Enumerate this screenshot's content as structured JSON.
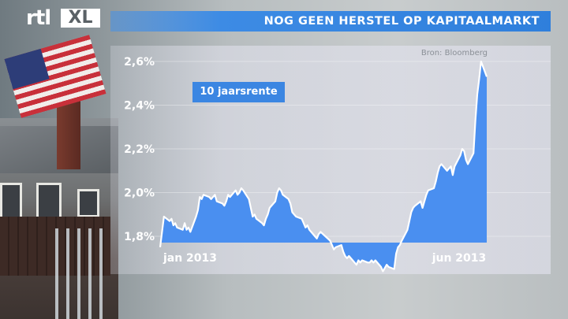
{
  "brand": {
    "logo_text": "rtl",
    "logo_suffix": "XL"
  },
  "header": {
    "title": "NOG GEEN HERSTEL OP KAPITAALMARKT"
  },
  "chart_data": {
    "type": "area",
    "title": "NOG GEEN HERSTEL OP KAPITAALMARKT",
    "source": "Bron: Bloomberg",
    "legend": "10 jaarsrente",
    "y_unit": "%",
    "ylim": [
      1.65,
      2.6
    ],
    "ytick_values": [
      1.8,
      2.0,
      2.2,
      2.4,
      2.6
    ],
    "yticks": [
      "1,8%",
      "2,0%",
      "2,2%",
      "2,4%",
      "2,6%"
    ],
    "xticks": [
      "jan 2013",
      "jun 2013"
    ],
    "x_range": [
      "2013-01-02",
      "2013-06-24"
    ],
    "grid": true,
    "fill_color": "#4a8ff0",
    "line_color": "#ffffff",
    "series": [
      {
        "x": [
          "2013-01-02",
          "2013-01-03",
          "2013-01-04",
          "2013-01-07",
          "2013-01-08",
          "2013-01-09",
          "2013-01-10",
          "2013-01-11",
          "2013-01-14",
          "2013-01-15",
          "2013-01-16",
          "2013-01-17",
          "2013-01-18",
          "2013-01-21",
          "2013-01-22",
          "2013-01-23",
          "2013-01-24",
          "2013-01-25",
          "2013-01-28",
          "2013-01-29",
          "2013-01-30",
          "2013-01-31",
          "2013-02-01",
          "2013-02-04",
          "2013-02-05",
          "2013-02-06",
          "2013-02-07",
          "2013-02-08",
          "2013-02-11",
          "2013-02-12",
          "2013-02-13",
          "2013-02-14",
          "2013-02-15",
          "2013-02-18",
          "2013-02-19",
          "2013-02-20",
          "2013-02-21",
          "2013-02-22",
          "2013-02-25",
          "2013-02-26",
          "2013-02-27",
          "2013-02-28",
          "2013-03-01",
          "2013-03-04",
          "2013-03-05",
          "2013-03-06",
          "2013-03-07",
          "2013-03-08",
          "2013-03-11",
          "2013-03-12",
          "2013-03-13",
          "2013-03-14",
          "2013-03-15",
          "2013-03-18",
          "2013-03-19",
          "2013-03-20",
          "2013-03-21",
          "2013-03-22",
          "2013-03-25",
          "2013-03-26",
          "2013-03-27",
          "2013-03-28",
          "2013-04-02",
          "2013-04-03",
          "2013-04-04",
          "2013-04-05",
          "2013-04-08",
          "2013-04-09",
          "2013-04-10",
          "2013-04-11",
          "2013-04-12",
          "2013-04-15",
          "2013-04-16",
          "2013-04-17",
          "2013-04-18",
          "2013-04-19",
          "2013-04-22",
          "2013-04-23",
          "2013-04-24",
          "2013-04-25",
          "2013-04-26",
          "2013-04-29",
          "2013-04-30",
          "2013-05-02",
          "2013-05-03",
          "2013-05-06",
          "2013-05-07",
          "2013-05-08",
          "2013-05-09",
          "2013-05-10",
          "2013-05-13",
          "2013-05-14",
          "2013-05-15",
          "2013-05-16",
          "2013-05-17",
          "2013-05-20",
          "2013-05-21",
          "2013-05-22",
          "2013-05-23",
          "2013-05-24",
          "2013-05-27",
          "2013-05-28",
          "2013-05-29",
          "2013-05-30",
          "2013-05-31",
          "2013-06-03",
          "2013-06-04",
          "2013-06-05",
          "2013-06-06",
          "2013-06-07",
          "2013-06-10",
          "2013-06-11",
          "2013-06-12",
          "2013-06-13",
          "2013-06-14",
          "2013-06-17",
          "2013-06-18",
          "2013-06-19",
          "2013-06-20",
          "2013-06-21",
          "2013-06-24"
        ],
        "y": [
          1.75,
          1.82,
          1.89,
          1.87,
          1.88,
          1.85,
          1.86,
          1.84,
          1.83,
          1.86,
          1.83,
          1.84,
          1.82,
          1.89,
          1.92,
          1.98,
          1.97,
          1.99,
          1.98,
          1.97,
          1.98,
          1.99,
          1.96,
          1.95,
          1.94,
          1.96,
          1.99,
          1.98,
          2.01,
          1.99,
          2.0,
          2.02,
          2.01,
          1.97,
          1.93,
          1.89,
          1.9,
          1.88,
          1.86,
          1.85,
          1.88,
          1.9,
          1.93,
          1.96,
          2.0,
          2.02,
          2.01,
          1.99,
          1.97,
          1.95,
          1.91,
          1.9,
          1.89,
          1.88,
          1.86,
          1.84,
          1.85,
          1.83,
          1.8,
          1.79,
          1.81,
          1.82,
          1.78,
          1.76,
          1.74,
          1.75,
          1.76,
          1.73,
          1.71,
          1.7,
          1.71,
          1.68,
          1.67,
          1.69,
          1.68,
          1.69,
          1.68,
          1.68,
          1.69,
          1.68,
          1.69,
          1.66,
          1.64,
          1.67,
          1.66,
          1.65,
          1.72,
          1.75,
          1.76,
          1.78,
          1.83,
          1.87,
          1.91,
          1.93,
          1.94,
          1.96,
          1.93,
          1.96,
          1.99,
          2.01,
          2.02,
          2.05,
          2.09,
          2.12,
          2.13,
          2.1,
          2.11,
          2.12,
          2.08,
          2.12,
          2.17,
          2.2,
          2.19,
          2.15,
          2.13,
          2.18,
          2.33,
          2.45,
          2.52,
          2.6,
          2.53
        ]
      }
    ]
  }
}
